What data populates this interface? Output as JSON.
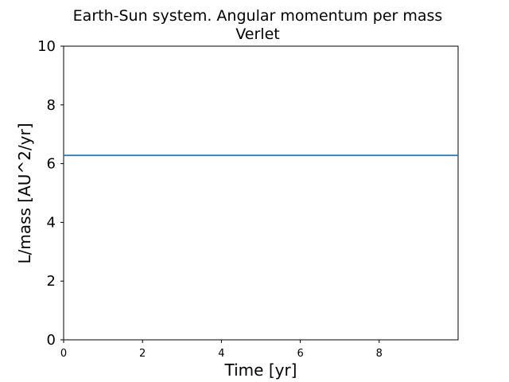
{
  "chart_data": {
    "type": "line",
    "title": "Earth-Sun system. Angular momentum per mass",
    "subtitle": "Verlet",
    "xlabel": "Time [yr]",
    "ylabel": "L/mass [AU^2/yr]",
    "xlim": [
      0,
      10
    ],
    "ylim": [
      0,
      10
    ],
    "xticks": [
      0,
      2,
      4,
      6,
      8
    ],
    "yticks": [
      0,
      2,
      4,
      6,
      8,
      10
    ],
    "grid": false,
    "series": [
      {
        "color": "#1f77b4",
        "x": [
          0,
          2,
          4,
          6,
          8,
          10
        ],
        "y": [
          6.28,
          6.28,
          6.28,
          6.28,
          6.28,
          6.28
        ]
      }
    ]
  }
}
